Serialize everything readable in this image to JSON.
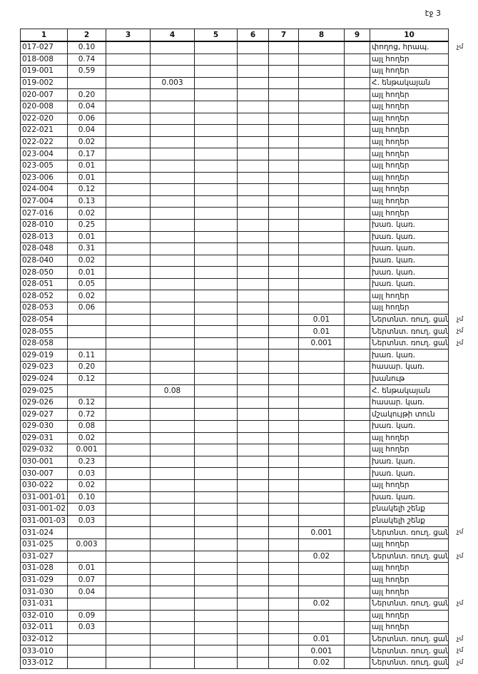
{
  "header": {
    "page": "էջ 3"
  },
  "table": {
    "columns": [
      "1",
      "2",
      "3",
      "4",
      "5",
      "6",
      "7",
      "8",
      "9",
      "10"
    ],
    "rows": [
      {
        "c1": "017-027",
        "c2": "0.10",
        "c10": "փողոց, հրապ.",
        "note": "չմ"
      },
      {
        "c1": "018-008",
        "c2": "0.74",
        "c10": "այլ հողեր"
      },
      {
        "c1": "019-001",
        "c2": "0.59",
        "c10": "այլ հողեր"
      },
      {
        "c1": "019-002",
        "c4": "0.003",
        "c10": "Հ. ենթակայան"
      },
      {
        "c1": "020-007",
        "c2": "0.20",
        "c10": "այլ հողեր"
      },
      {
        "c1": "020-008",
        "c2": "0.04",
        "c10": "այլ հողեր"
      },
      {
        "c1": "022-020",
        "c2": "0.06",
        "c10": "այլ հողեր"
      },
      {
        "c1": "022-021",
        "c2": "0.04",
        "c10": "այլ հողեր"
      },
      {
        "c1": "022-022",
        "c2": "0.02",
        "c10": "այլ հողեր"
      },
      {
        "c1": "023-004",
        "c2": "0.17",
        "c10": "այլ հողեր"
      },
      {
        "c1": "023-005",
        "c2": "0.01",
        "c10": "այլ հողեր"
      },
      {
        "c1": "023-006",
        "c2": "0.01",
        "c10": "այլ հողեր"
      },
      {
        "c1": "024-004",
        "c2": "0.12",
        "c10": "այլ հողեր"
      },
      {
        "c1": "027-004",
        "c2": "0.13",
        "c10": "այլ հողեր"
      },
      {
        "c1": "027-016",
        "c2": "0.02",
        "c10": "այլ հողեր"
      },
      {
        "c1": "028-010",
        "c2": "0.25",
        "c10": "խառ. կառ."
      },
      {
        "c1": "028-013",
        "c2": "0.01",
        "c10": "խառ. կառ."
      },
      {
        "c1": "028-048",
        "c2": "0.31",
        "c10": "խառ. կառ."
      },
      {
        "c1": "028-040",
        "c2": "0.02",
        "c10": "խառ. կառ."
      },
      {
        "c1": "028-050",
        "c2": "0.01",
        "c10": "խառ. կառ."
      },
      {
        "c1": "028-051",
        "c2": "0.05",
        "c10": "խառ. կառ."
      },
      {
        "c1": "028-052",
        "c2": "0.02",
        "c10": "այլ հողեր"
      },
      {
        "c1": "028-053",
        "c2": "0.06",
        "c10": "այլ հողեր"
      },
      {
        "c1": "028-054",
        "c8": "0.01",
        "c10": "Ներտնտ. ռուղ. ցանց",
        "note": "չմ"
      },
      {
        "c1": "028-055",
        "c8": "0.01",
        "c10": "Ներտնտ. ռուղ. ցանց",
        "note": "չմ"
      },
      {
        "c1": "028-058",
        "c8": "0.001",
        "c10": "Ներտնտ. ռուղ. ցանց",
        "note": "չմ"
      },
      {
        "c1": "029-019",
        "c2": "0.11",
        "c10": "խառ. կառ."
      },
      {
        "c1": "029-023",
        "c2": "0.20",
        "c10": "հասար. կառ."
      },
      {
        "c1": "029-024",
        "c2": "0.12",
        "c10": "խանութ"
      },
      {
        "c1": "029-025",
        "c4": "0.08",
        "c10": "Հ. ենթակայան"
      },
      {
        "c1": "029-026",
        "c2": "0.12",
        "c10": "հասար. կառ."
      },
      {
        "c1": "029-027",
        "c2": "0.72",
        "c10": "մշակույթի տուն"
      },
      {
        "c1": "029-030",
        "c2": "0.08",
        "c10": "խառ. կառ."
      },
      {
        "c1": "029-031",
        "c2": "0.02",
        "c10": "այլ հողեր"
      },
      {
        "c1": "029-032",
        "c2": "0.001",
        "c10": "այլ հողեր"
      },
      {
        "c1": "030-001",
        "c2": "0.23",
        "c10": "խառ. կառ."
      },
      {
        "c1": "030-007",
        "c2": "0.03",
        "c10": "խառ. կառ."
      },
      {
        "c1": "030-022",
        "c2": "0.02",
        "c10": "այլ հողեր"
      },
      {
        "c1": "031-001-01",
        "c2": "0.10",
        "c10": "խառ. կառ."
      },
      {
        "c1": "031-001-02",
        "c2": "0.03",
        "c10": "բնակելի շենք"
      },
      {
        "c1": "031-001-03",
        "c2": "0.03",
        "c10": "բնակելի շենք"
      },
      {
        "c1": "031-024",
        "c8": "0.001",
        "c10": "Ներտնտ. ռուղ. ցանց",
        "note": "չմ"
      },
      {
        "c1": "031-025",
        "c2": "0.003",
        "c10": "այլ հողեր"
      },
      {
        "c1": "031-027",
        "c8": "0.02",
        "c10": "Ներտնտ. ռուղ. ցանց",
        "note": "չմ"
      },
      {
        "c1": "031-028",
        "c2": "0.01",
        "c10": "այլ հողեր"
      },
      {
        "c1": "031-029",
        "c2": "0.07",
        "c10": "այլ հողեր"
      },
      {
        "c1": "031-030",
        "c2": "0.04",
        "c10": "այլ հողեր"
      },
      {
        "c1": "031-031",
        "c8": "0.02",
        "c10": "Ներտնտ. ռուղ. ցանց",
        "note": "չմ"
      },
      {
        "c1": "032-010",
        "c2": "0.09",
        "c10": "այլ հողեր"
      },
      {
        "c1": "032-011",
        "c2": "0.03",
        "c10": "այլ հողեր"
      },
      {
        "c1": "032-012",
        "c8": "0.01",
        "c10": "Ներտնտ. ռուղ. ցանց",
        "note": "չմ"
      },
      {
        "c1": "033-010",
        "c8": "0.001",
        "c10": "Ներտնտ. ռուղ. ցանց",
        "note": "չմ"
      },
      {
        "c1": "033-012",
        "c8": "0.02",
        "c10": "Ներտնտ. ռուղ. ցանց",
        "note": "չմ"
      }
    ]
  }
}
